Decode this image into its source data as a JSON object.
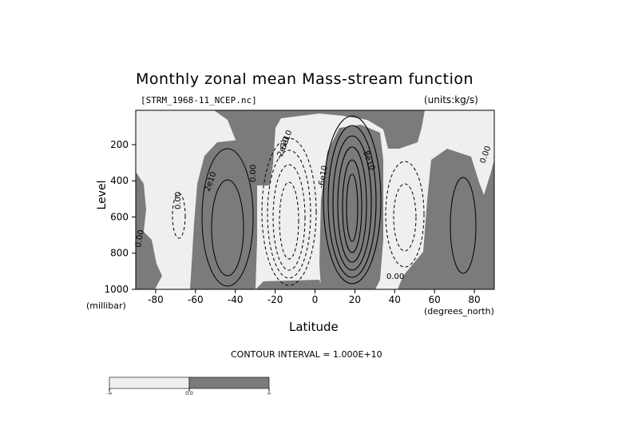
{
  "chart_data": {
    "type": "heatmap",
    "title": "Monthly zonal mean Mass-stream function",
    "subtitle_left": "[STRM_1968-11_NCEP.nc]",
    "subtitle_right": "(units:kg/s)",
    "xlabel": "Latitude",
    "xunit": "(degrees_north)",
    "ylabel": "Level",
    "yunit": "(millibar)",
    "xlim": [
      -90,
      90
    ],
    "ylim": [
      1000,
      10
    ],
    "xticks": [
      -80,
      -60,
      -40,
      -20,
      0,
      20,
      40,
      60,
      80
    ],
    "yticks": [
      200,
      400,
      600,
      800,
      1000
    ],
    "contour_interval_text": "CONTOUR INTERVAL = 1.000E+10",
    "shading": "values > 0 dark gray, values < 0 light gray",
    "contour_labels": [
      "0.00",
      "2e10",
      "-2e10",
      "6e10",
      "8e10",
      "-6e10",
      "-8e10",
      "-1e10",
      "1e10"
    ],
    "colorbar": {
      "labels": [
        "-∞",
        "0.0",
        "∞"
      ],
      "colors": [
        "#efefef",
        "#7b7b7b"
      ]
    },
    "colors": {
      "positive": "#7b7b7b",
      "negative": "#efefef"
    }
  }
}
